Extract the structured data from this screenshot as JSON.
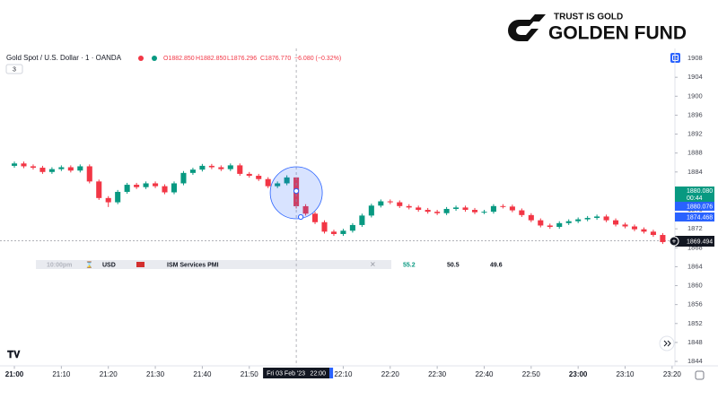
{
  "chart_data": {
    "type": "candlestick",
    "title": "Gold Spot / U.S. Dollar · 1 · OANDA",
    "ohlc_legend": [
      "O1882.850",
      "H1882.850",
      "L1876.296",
      "C1876.770",
      "−6.080 (−0.32%)"
    ],
    "collapse_count": "3",
    "brand": {
      "tagline": "TRUST IS GOLD",
      "name": "GOLDEN FUND"
    },
    "up_color": "#089981",
    "down_color": "#f23645",
    "open": [
      1885.3,
      1885.8,
      1885.2,
      1884.9,
      1884.0,
      1884.6,
      1885.0,
      1884.3,
      1885.2,
      1882.0,
      1878.5,
      1877.6,
      1879.8,
      1881.3,
      1880.8,
      1881.6,
      1881.0,
      1879.7,
      1881.6,
      1883.8,
      1884.5,
      1885.3,
      1885.0,
      1884.6,
      1885.4,
      1883.6,
      1883.2,
      1882.5,
      1881.0,
      1881.6,
      1882.85,
      1876.77,
      1875.2,
      1873.4,
      1871.4,
      1870.9,
      1871.6,
      1872.8,
      1874.8,
      1876.9,
      1877.8,
      1877.6,
      1876.8,
      1876.5,
      1876.0,
      1875.6,
      1875.3,
      1876.2,
      1876.5,
      1876.0,
      1875.5,
      1875.6,
      1876.8,
      1876.7,
      1875.9,
      1874.9,
      1873.8,
      1872.7,
      1872.4,
      1873.2,
      1873.6,
      1874.0,
      1874.3,
      1874.6,
      1873.8,
      1872.9,
      1872.5,
      1871.9,
      1871.4,
      1870.7,
      1869.2
    ],
    "high": [
      1886.2,
      1886.2,
      1885.6,
      1885.3,
      1885.0,
      1885.4,
      1885.4,
      1885.6,
      1885.6,
      1882.4,
      1878.9,
      1880.2,
      1881.7,
      1881.7,
      1882.0,
      1882.0,
      1881.4,
      1882.0,
      1884.2,
      1884.9,
      1885.7,
      1885.7,
      1885.4,
      1885.8,
      1885.8,
      1884.0,
      1883.6,
      1882.9,
      1882.0,
      1883.3,
      1882.85,
      1877.2,
      1875.6,
      1873.8,
      1871.8,
      1872.0,
      1873.2,
      1875.2,
      1877.3,
      1878.2,
      1878.2,
      1878.0,
      1877.2,
      1876.9,
      1876.4,
      1876.0,
      1876.6,
      1876.9,
      1876.9,
      1876.4,
      1876.0,
      1877.2,
      1877.2,
      1877.1,
      1876.3,
      1875.3,
      1874.2,
      1873.1,
      1873.6,
      1874.0,
      1874.4,
      1874.7,
      1875.0,
      1875.0,
      1874.2,
      1873.3,
      1872.9,
      1872.3,
      1871.8,
      1871.1,
      1869.9
    ],
    "low": [
      1884.9,
      1884.8,
      1884.5,
      1883.6,
      1883.6,
      1884.2,
      1883.9,
      1883.9,
      1881.6,
      1878.1,
      1876.6,
      1877.2,
      1879.4,
      1880.4,
      1880.4,
      1880.6,
      1879.3,
      1879.3,
      1881.2,
      1883.4,
      1884.1,
      1884.6,
      1884.2,
      1884.2,
      1883.2,
      1882.8,
      1882.1,
      1880.6,
      1880.6,
      1881.2,
      1876.296,
      1874.8,
      1873.0,
      1871.0,
      1870.5,
      1870.5,
      1871.2,
      1872.4,
      1874.4,
      1876.5,
      1877.2,
      1876.4,
      1876.1,
      1875.6,
      1875.2,
      1874.9,
      1874.9,
      1875.8,
      1875.6,
      1875.1,
      1875.1,
      1875.2,
      1876.3,
      1875.5,
      1874.5,
      1873.4,
      1872.3,
      1872.0,
      1872.0,
      1872.8,
      1873.2,
      1873.6,
      1873.9,
      1873.4,
      1872.5,
      1872.1,
      1871.5,
      1871.0,
      1870.3,
      1868.8,
      1868.8
    ],
    "close": [
      1885.8,
      1885.2,
      1884.9,
      1884.0,
      1884.6,
      1885.0,
      1884.3,
      1885.2,
      1882.0,
      1878.5,
      1877.6,
      1879.8,
      1881.3,
      1880.8,
      1881.6,
      1881.0,
      1879.7,
      1881.6,
      1883.8,
      1884.5,
      1885.3,
      1885.0,
      1884.6,
      1885.4,
      1883.6,
      1883.2,
      1882.5,
      1881.0,
      1881.6,
      1882.85,
      1876.77,
      1875.2,
      1873.4,
      1871.4,
      1870.9,
      1871.6,
      1872.8,
      1874.8,
      1876.9,
      1877.8,
      1877.6,
      1876.8,
      1876.5,
      1876.0,
      1875.6,
      1875.3,
      1876.2,
      1876.5,
      1876.0,
      1875.5,
      1875.6,
      1876.8,
      1876.7,
      1875.9,
      1874.9,
      1873.8,
      1872.7,
      1872.4,
      1873.2,
      1873.6,
      1874.0,
      1874.3,
      1874.6,
      1873.8,
      1872.9,
      1872.5,
      1871.9,
      1871.4,
      1870.7,
      1869.2,
      1869.494
    ],
    "ylim": [
      1843,
      1910
    ],
    "yticks": [
      1844,
      1848,
      1852,
      1856,
      1860,
      1864,
      1868,
      1872,
      1876,
      1880,
      1884,
      1888,
      1892,
      1896,
      1900,
      1904,
      1908
    ],
    "xlim": [
      -1.53,
      70.3
    ],
    "xticks": [
      {
        "value": 0,
        "label": "21:00"
      },
      {
        "value": 5,
        "label": "21:10"
      },
      {
        "value": 10,
        "label": "21:20"
      },
      {
        "value": 15,
        "label": "21:30"
      },
      {
        "value": 20,
        "label": "21:40"
      },
      {
        "value": 25,
        "label": "21:50"
      },
      {
        "value": 35,
        "label": "22:10"
      },
      {
        "value": 40,
        "label": "22:20"
      },
      {
        "value": 45,
        "label": "22:30"
      },
      {
        "value": 50,
        "label": "22:40"
      },
      {
        "value": 55,
        "label": "22:50"
      },
      {
        "value": 60,
        "label": "23:00"
      },
      {
        "value": 65,
        "label": "23:10"
      },
      {
        "value": 70,
        "label": "23:20"
      }
    ],
    "crosshair": {
      "value": 30,
      "label": "22:00",
      "date": "Fri 03 Feb '23"
    },
    "price_labels": [
      "1880.080",
      "00:44",
      "1880.076",
      "1874.468",
      "1869.494"
    ],
    "event_row": [
      "10:00pm",
      "USD",
      "ISM Services PMI",
      "55.2",
      "50.5",
      "49.6"
    ],
    "grid": false
  }
}
